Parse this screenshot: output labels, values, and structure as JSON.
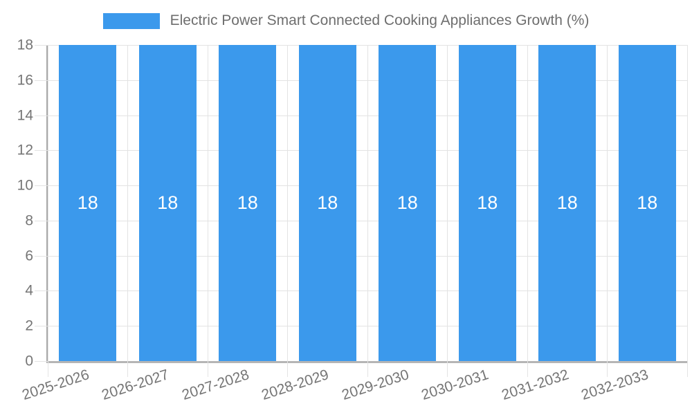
{
  "chart_data": {
    "type": "bar",
    "title": "Electric Power Smart Connected Cooking Appliances Growth (%)",
    "categories": [
      "2025-2026",
      "2026-2027",
      "2027-2028",
      "2028-2029",
      "2029-2030",
      "2030-2031",
      "2031-2032",
      "2032-2033"
    ],
    "series": [
      {
        "name": "Electric Power Smart Connected Cooking Appliances Growth (%)",
        "values": [
          18,
          18,
          18,
          18,
          18,
          18,
          18,
          18
        ]
      }
    ],
    "bar_value_labels": [
      "18",
      "18",
      "18",
      "18",
      "18",
      "18",
      "18",
      "18"
    ],
    "xlabel": "",
    "ylabel": "",
    "ylim": [
      0,
      18
    ],
    "yticks": [
      0,
      2,
      4,
      6,
      8,
      10,
      12,
      14,
      16,
      18
    ],
    "grid": true,
    "legend_position": "top",
    "x_label_rotation_deg": -18,
    "colors": {
      "bar": "#3b99ec",
      "bar_value_text": "#ffffff",
      "axis_text": "#757575",
      "title_text": "#6e6e6e",
      "gridline": "#e3e3e3",
      "axis_line": "#a9a9a9",
      "background": "#ffffff"
    }
  }
}
